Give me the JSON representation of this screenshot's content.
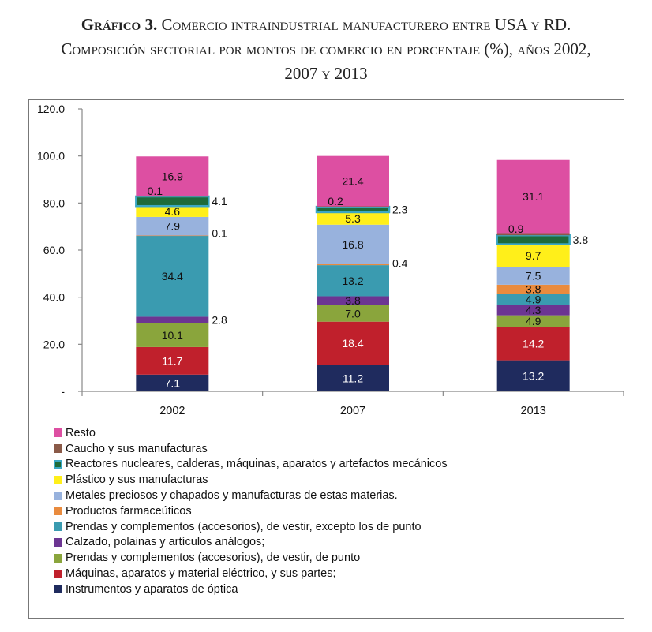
{
  "title": {
    "line1_label": "Gráfico 3.",
    "line1_text": "Comercio intraindustrial manufacturero entre USA y RD.",
    "line2": "Composición sectorial por montos de comercio en porcentaje (%), años 2002,",
    "line3": "2007 y 2013"
  },
  "chart_data": {
    "type": "bar",
    "stacked": true,
    "categories": [
      "2002",
      "2007",
      "2013"
    ],
    "ylim": [
      0,
      120
    ],
    "yticks": [
      0,
      20,
      40,
      60,
      80,
      100,
      120
    ],
    "ytick_labels": [
      "-",
      "20.0",
      "40.0",
      "60.0",
      "80.0",
      "100.0",
      "120.0"
    ],
    "series": [
      {
        "name": "Instrumentos y aparatos de óptica",
        "color": "#1f2b5e",
        "values": [
          7.1,
          11.2,
          13.2
        ],
        "labels": [
          "7.1",
          "11.2",
          "13.2"
        ],
        "label_color": "#ffffff"
      },
      {
        "name": "Máquinas, aparatos y material eléctrico, y sus partes;",
        "color": "#c0202c",
        "values": [
          11.7,
          18.4,
          14.2
        ],
        "labels": [
          "11.7",
          "18.4",
          "14.2"
        ],
        "label_color": "#ffffff"
      },
      {
        "name": "Prendas y complementos (accesorios), de vestir, de punto",
        "color": "#8aa53c",
        "values": [
          10.1,
          7.0,
          4.9
        ],
        "labels": [
          "10.1",
          "7.0",
          "4.9"
        ],
        "label_color": "#111111"
      },
      {
        "name": "Calzado, polainas y artículos análogos;",
        "color": "#6c3592",
        "values": [
          2.8,
          3.8,
          4.3
        ],
        "labels": [
          "2.8",
          "3.8",
          "4.3"
        ],
        "label_color": "#111111"
      },
      {
        "name": "Prendas y complementos (accesorios), de vestir, excepto los de punto",
        "color": "#3a9bb0",
        "values": [
          34.4,
          13.2,
          4.9
        ],
        "labels": [
          "34.4",
          "13.2",
          "4.9"
        ],
        "label_color": "#111111"
      },
      {
        "name": "Productos farmaceúticos",
        "color": "#e98b3e",
        "values": [
          0.1,
          0.4,
          3.8
        ],
        "labels": [
          "0.1",
          "0.4",
          "3.8"
        ],
        "label_color": "#111111"
      },
      {
        "name": "Metales preciosos y chapados  y manufacturas de estas materias.",
        "color": "#98b2dd",
        "values": [
          7.9,
          16.8,
          7.5
        ],
        "labels": [
          "7.9",
          "16.8",
          "7.5"
        ],
        "label_color": "#111111"
      },
      {
        "name": "Plástico y sus manufacturas",
        "color": "#ffef1a",
        "values": [
          4.6,
          5.3,
          9.7
        ],
        "labels": [
          "4.6",
          "5.3",
          "9.7"
        ],
        "label_color": "#111111"
      },
      {
        "name": "Reactores nucleares, calderas, máquinas, aparatos y artefactos mecánicos",
        "color": "#1e6b3a",
        "outline": "#3aa7c4",
        "values": [
          4.1,
          2.3,
          3.8
        ],
        "labels": [
          "4.1",
          "2.3",
          "3.8"
        ],
        "label_color": "#111111"
      },
      {
        "name": "Caucho y sus manufacturas",
        "color": "#8a5a48",
        "values": [
          0.1,
          0.2,
          0.9
        ],
        "labels": [
          "0.1",
          "0.2",
          "0.9"
        ],
        "label_color": "#111111"
      },
      {
        "name": "Resto",
        "color": "#dd4fa2",
        "values": [
          16.9,
          21.4,
          31.1
        ],
        "labels": [
          "16.9",
          "21.4",
          "31.1"
        ],
        "label_color": "#111111"
      }
    ],
    "legend_order": [
      "Resto",
      "Caucho y sus manufacturas",
      "Reactores nucleares, calderas, máquinas, aparatos y artefactos mecánicos",
      "Plástico y sus manufacturas",
      "Metales preciosos y chapados  y manufacturas de estas materias.",
      "Productos farmaceúticos",
      "Prendas y complementos (accesorios), de vestir, excepto los de punto",
      "Calzado, polainas y artículos análogos;",
      "Prendas y complementos (accesorios), de vestir, de punto",
      "Máquinas, aparatos y material eléctrico, y sus partes;",
      "Instrumentos y aparatos de óptica"
    ],
    "legend_position": "bottom-left"
  }
}
